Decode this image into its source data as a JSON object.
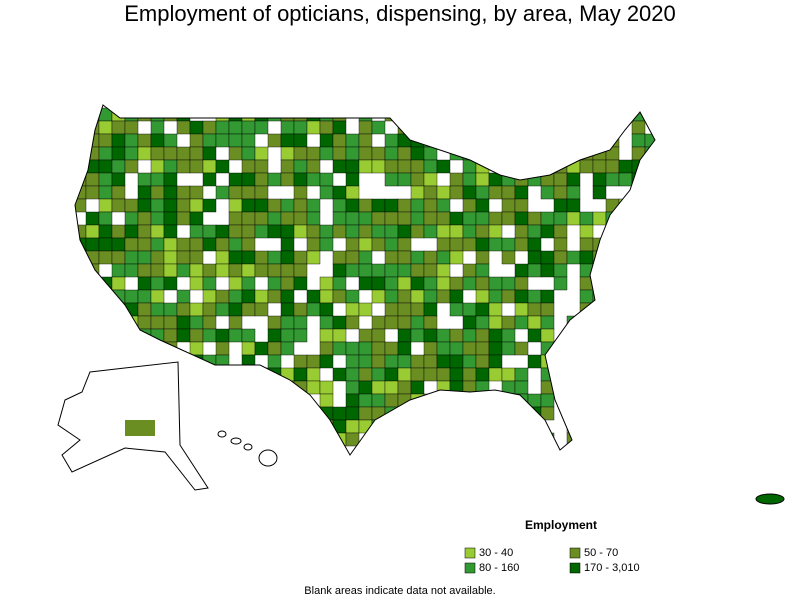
{
  "title": "Employment of opticians, dispensing, by area, May 2020",
  "legend": {
    "title": "Employment",
    "items": [
      {
        "label": "30 - 40",
        "color": "#99cc33"
      },
      {
        "label": "50 - 70",
        "color": "#6b8e23"
      },
      {
        "label": "80 - 160",
        "color": "#339933"
      },
      {
        "label": "170 - 3,010",
        "color": "#006600"
      }
    ]
  },
  "footnote": "Blank areas indicate data not available."
}
